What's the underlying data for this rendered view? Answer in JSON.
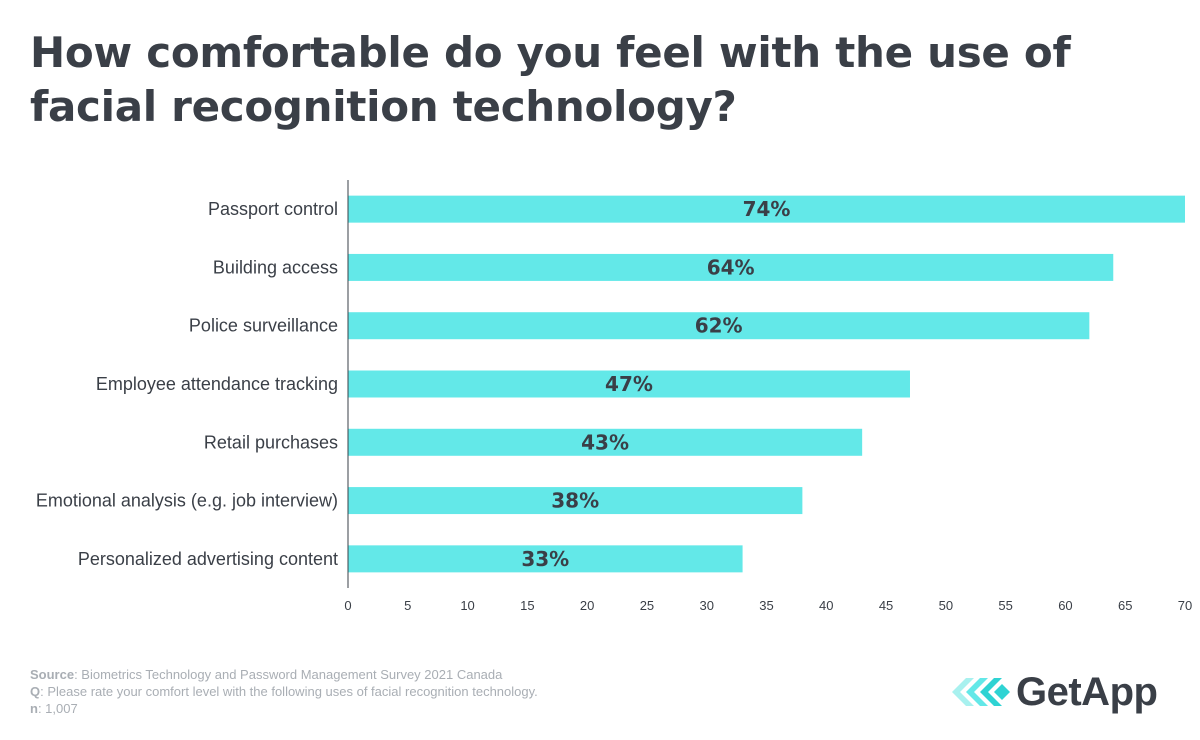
{
  "title": "How comfortable do you feel with the use of facial recognition technology?",
  "chart_data": {
    "type": "bar",
    "orientation": "horizontal",
    "title": "How comfortable do you feel with the use of facial recognition technology?",
    "categories": [
      "Passport control",
      "Building access",
      "Police surveillance",
      "Employee attendance tracking",
      "Retail purchases",
      "Emotional analysis (e.g. job interview)",
      "Personalized advertising content"
    ],
    "values": [
      74,
      64,
      62,
      47,
      43,
      38,
      33
    ],
    "data_labels": [
      "74%",
      "64%",
      "62%",
      "47%",
      "43%",
      "38%",
      "33%"
    ],
    "xlim": [
      0,
      70
    ],
    "xticks": [
      0,
      5,
      10,
      15,
      20,
      25,
      30,
      35,
      40,
      45,
      50,
      55,
      60,
      65,
      70
    ],
    "xlabel": "",
    "ylabel": "",
    "grid": false,
    "bar_color": "#63e8e8"
  },
  "footer": {
    "source_label": "Source",
    "source_text": ": Biometrics Technology and Password Management Survey 2021 Canada",
    "q_label": "Q",
    "q_text": ": Please rate your comfort level with the following uses of facial recognition technology.",
    "n_label": "n",
    "n_text": ": 1,007"
  },
  "logo": {
    "text": "GetApp",
    "icon": "getapp-chevrons-icon",
    "colors": [
      "#a8f1ef",
      "#63e8e8",
      "#2fd3d3"
    ]
  }
}
